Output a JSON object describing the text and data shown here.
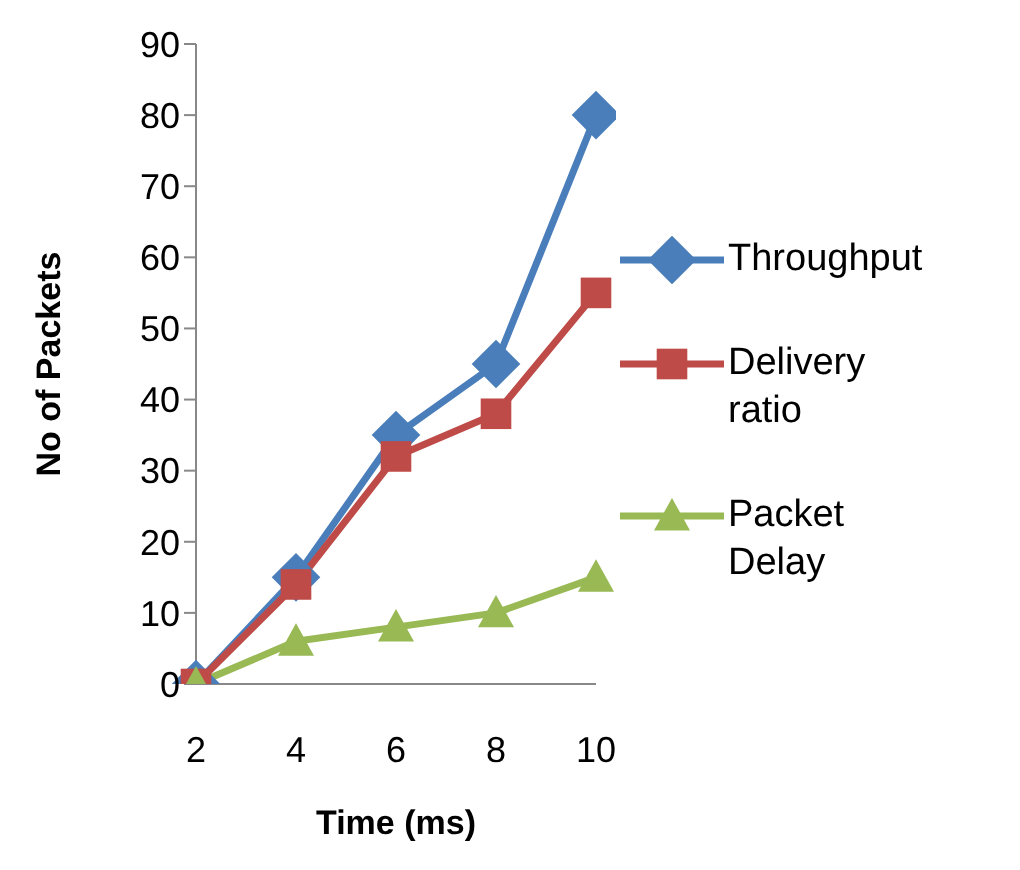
{
  "chart_data": {
    "type": "line",
    "xlabel": "Time (ms)",
    "ylabel": "No of Packets",
    "categories": [
      "2",
      "4",
      "6",
      "8",
      "10"
    ],
    "series": [
      {
        "name": "Throughput",
        "color": "#4a7ebb",
        "marker": "diamond",
        "values": [
          0,
          15,
          35,
          45,
          80
        ]
      },
      {
        "name": "Delivery ratio",
        "color": "#be4b48",
        "marker": "square",
        "values": [
          0,
          14,
          32,
          38,
          55
        ]
      },
      {
        "name": "Packet Delay",
        "color": "#98b954",
        "marker": "triangle",
        "values": [
          0,
          6,
          8,
          10,
          15
        ]
      }
    ],
    "ylim": [
      0,
      90
    ],
    "yticks": [
      0,
      10,
      20,
      30,
      40,
      50,
      60,
      70,
      80,
      90
    ],
    "grid": false,
    "legend": "right"
  }
}
